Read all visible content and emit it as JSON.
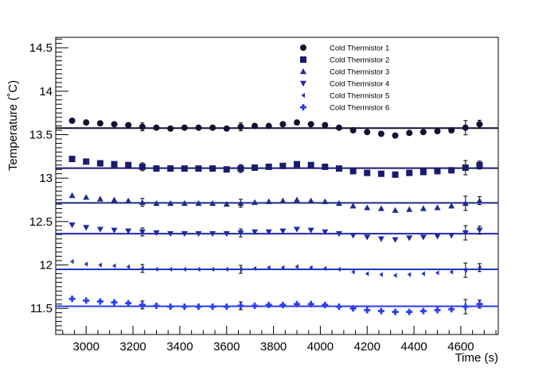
{
  "chart_data": {
    "type": "scatter",
    "title": "",
    "xlabel": "Time (s)",
    "ylabel": "Temperature (˚C)",
    "xlim": [
      2870,
      4760
    ],
    "ylim": [
      11.2,
      14.62
    ],
    "x_ticks": [
      3000,
      3200,
      3400,
      3600,
      3800,
      4000,
      4200,
      4400,
      4600
    ],
    "y_ticks": [
      11.5,
      12,
      12.5,
      13,
      13.5,
      14,
      14.5
    ],
    "grid": false,
    "legend_position": "top-right",
    "x": [
      2940,
      3000,
      3060,
      3120,
      3180,
      3240,
      3300,
      3360,
      3420,
      3480,
      3540,
      3600,
      3660,
      3720,
      3780,
      3840,
      3900,
      3960,
      4020,
      4080,
      4140,
      4200,
      4260,
      4320,
      4380,
      4440,
      4500,
      4560,
      4620,
      4680
    ],
    "series": [
      {
        "name": "Cold Thermistor 1",
        "marker": "circle",
        "color": "#111133",
        "fit": 13.575,
        "values": [
          13.66,
          13.64,
          13.63,
          13.62,
          13.61,
          13.59,
          13.58,
          13.57,
          13.58,
          13.58,
          13.58,
          13.57,
          13.59,
          13.6,
          13.6,
          13.62,
          13.64,
          13.62,
          13.61,
          13.58,
          13.55,
          13.53,
          13.51,
          13.49,
          13.52,
          13.53,
          13.54,
          13.55,
          13.58,
          13.62
        ]
      },
      {
        "name": "Cold Thermistor 2",
        "marker": "square",
        "color": "#1a1a6e",
        "fit": 13.115,
        "values": [
          13.22,
          13.19,
          13.17,
          13.16,
          13.15,
          13.13,
          13.11,
          13.11,
          13.11,
          13.11,
          13.11,
          13.1,
          13.11,
          13.12,
          13.13,
          13.14,
          13.16,
          13.15,
          13.13,
          13.11,
          13.08,
          13.06,
          13.05,
          13.04,
          13.06,
          13.07,
          13.08,
          13.09,
          13.12,
          13.15
        ]
      },
      {
        "name": "Cold Thermistor 3",
        "marker": "triangle-up",
        "color": "#1f2d8a",
        "fit": 12.715,
        "values": [
          12.8,
          12.78,
          12.76,
          12.75,
          12.74,
          12.72,
          12.71,
          12.71,
          12.71,
          12.71,
          12.71,
          12.7,
          12.71,
          12.72,
          12.73,
          12.74,
          12.75,
          12.74,
          12.73,
          12.71,
          12.68,
          12.66,
          12.65,
          12.63,
          12.64,
          12.65,
          12.66,
          12.68,
          12.71,
          12.74
        ]
      },
      {
        "name": "Cold Thermistor 4",
        "marker": "triangle-down",
        "color": "#1f2aa8",
        "fit": 12.36,
        "values": [
          12.46,
          12.43,
          12.41,
          12.4,
          12.39,
          12.38,
          12.37,
          12.36,
          12.36,
          12.36,
          12.36,
          12.36,
          12.37,
          12.38,
          12.38,
          12.39,
          12.41,
          12.4,
          12.38,
          12.36,
          12.34,
          12.32,
          12.3,
          12.29,
          12.31,
          12.32,
          12.33,
          12.34,
          12.37,
          12.4
        ]
      },
      {
        "name": "Cold Thermistor 5",
        "marker": "triangle-left",
        "color": "#2233c4",
        "fit": 11.95,
        "values": [
          12.04,
          12.01,
          12.0,
          11.99,
          11.98,
          11.96,
          11.95,
          11.95,
          11.95,
          11.95,
          11.95,
          11.95,
          11.95,
          11.96,
          11.97,
          11.97,
          11.98,
          11.97,
          11.96,
          11.95,
          11.92,
          11.9,
          11.89,
          11.88,
          11.89,
          11.9,
          11.91,
          11.92,
          11.94,
          11.97
        ]
      },
      {
        "name": "Cold Thermistor 6",
        "marker": "cross",
        "color": "#2b3df0",
        "fit": 11.525,
        "values": [
          11.61,
          11.59,
          11.58,
          11.57,
          11.56,
          11.54,
          11.53,
          11.52,
          11.52,
          11.52,
          11.52,
          11.52,
          11.53,
          11.53,
          11.54,
          11.54,
          11.55,
          11.55,
          11.54,
          11.52,
          11.5,
          11.48,
          11.47,
          11.46,
          11.46,
          11.47,
          11.48,
          11.49,
          11.52,
          11.55
        ]
      }
    ]
  }
}
